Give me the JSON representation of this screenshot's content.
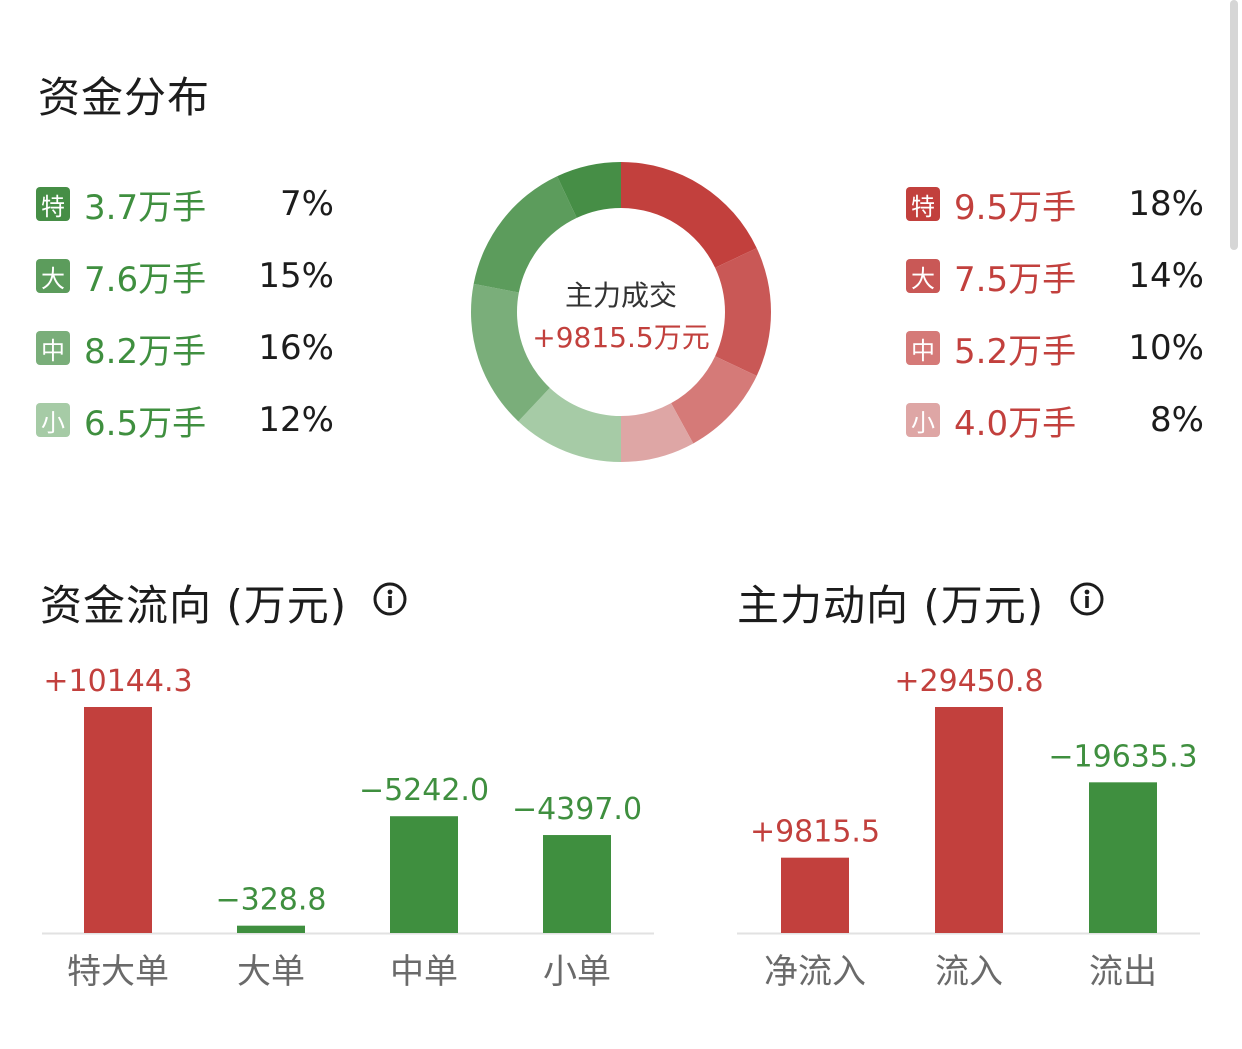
{
  "distribution": {
    "title": "资金分布",
    "center_label": "主力成交",
    "center_value": "+9815.5万元",
    "outflow": [
      {
        "badge": "特",
        "value": "3.7万手",
        "pct": "7%",
        "color": "#468e46"
      },
      {
        "badge": "大",
        "value": "7.6万手",
        "pct": "15%",
        "color": "#5c9c5c"
      },
      {
        "badge": "中",
        "value": "8.2万手",
        "pct": "16%",
        "color": "#7aae7a"
      },
      {
        "badge": "小",
        "value": "6.5万手",
        "pct": "12%",
        "color": "#a6cba6"
      }
    ],
    "inflow": [
      {
        "badge": "特",
        "value": "9.5万手",
        "pct": "18%",
        "color": "#c2403d"
      },
      {
        "badge": "大",
        "value": "7.5万手",
        "pct": "14%",
        "color": "#c95856"
      },
      {
        "badge": "中",
        "value": "5.2万手",
        "pct": "10%",
        "color": "#d57a78"
      },
      {
        "badge": "小",
        "value": "4.0万手",
        "pct": "8%",
        "color": "#dea6a5"
      }
    ],
    "text_green": "#3f8f3f",
    "text_red": "#c2403d"
  },
  "flow": {
    "title": "资金流向 (万元)"
  },
  "main": {
    "title": "主力动向 (万元)"
  },
  "chart_data": [
    {
      "type": "pie",
      "labels": [
        "特 流入",
        "大 流入",
        "中 流入",
        "小 流入",
        "小 流出",
        "中 流出",
        "大 流出",
        "特 流出"
      ],
      "values": [
        18,
        14,
        10,
        8,
        12,
        16,
        15,
        7
      ],
      "colors": [
        "#c2403d",
        "#c95856",
        "#d57a78",
        "#dea6a5",
        "#a6cba6",
        "#7aae7a",
        "#5c9c5c",
        "#468e46"
      ]
    },
    {
      "type": "bar",
      "categories": [
        "特大单",
        "大单",
        "中单",
        "小单"
      ],
      "values": [
        10144.3,
        -328.8,
        -5242.0,
        -4397.0
      ],
      "value_labels": [
        "+10144.3",
        "−328.8",
        "−5242.0",
        "−4397.0"
      ],
      "colors": [
        "#c2403d",
        "#3f8f3f",
        "#3f8f3f",
        "#3f8f3f"
      ]
    },
    {
      "type": "bar",
      "categories": [
        "净流入",
        "流入",
        "流出"
      ],
      "values": [
        9815.5,
        29450.8,
        -19635.3
      ],
      "value_labels": [
        "+9815.5",
        "+29450.8",
        "−19635.3"
      ],
      "colors": [
        "#c2403d",
        "#c2403d",
        "#3f8f3f"
      ]
    }
  ]
}
